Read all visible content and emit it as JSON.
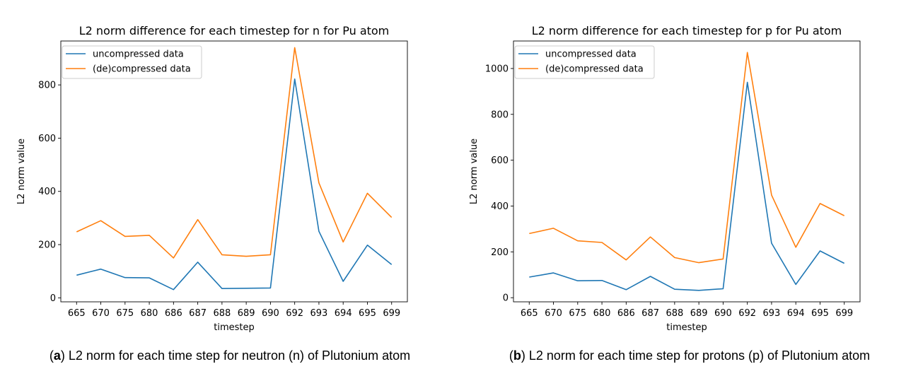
{
  "chart_data": [
    {
      "type": "line",
      "title": "L2 norm difference for each timestep for n for Pu atom",
      "xlabel": "timestep",
      "ylabel": "L2 norm value",
      "categories": [
        "665",
        "670",
        "675",
        "680",
        "686",
        "687",
        "688",
        "689",
        "690",
        "692",
        "693",
        "694",
        "695",
        "699"
      ],
      "ylim": [
        -15,
        965
      ],
      "yticks": [
        0,
        200,
        400,
        600,
        800
      ],
      "legend_position": "top-left",
      "grid": false,
      "series": [
        {
          "name": "uncompressed data",
          "color": "#1f77b4",
          "values": [
            85,
            108,
            76,
            75,
            31,
            134,
            35,
            36,
            37,
            822,
            250,
            62,
            198,
            125
          ]
        },
        {
          "name": "(de)compressed data",
          "color": "#ff7f0e",
          "values": [
            248,
            290,
            231,
            235,
            150,
            294,
            162,
            156,
            162,
            940,
            432,
            210,
            393,
            302
          ]
        }
      ],
      "caption": {
        "prefix": "(",
        "letter": "a",
        "suffix": ") L2 norm for each time step for neutron (n) of Plutonium atom"
      }
    },
    {
      "type": "line",
      "title": "L2 norm difference for each timestep for p for Pu atom",
      "xlabel": "timestep",
      "ylabel": "L2 norm value",
      "categories": [
        "665",
        "670",
        "675",
        "680",
        "686",
        "687",
        "688",
        "689",
        "690",
        "692",
        "693",
        "694",
        "695",
        "699"
      ],
      "ylim": [
        -18,
        1120
      ],
      "yticks": [
        0,
        200,
        400,
        600,
        800,
        1000
      ],
      "legend_position": "top-left",
      "grid": false,
      "series": [
        {
          "name": "uncompressed data",
          "color": "#1f77b4",
          "values": [
            90,
            108,
            74,
            75,
            35,
            93,
            37,
            32,
            39,
            940,
            238,
            58,
            204,
            150
          ]
        },
        {
          "name": "(de)compressed data",
          "color": "#ff7f0e",
          "values": [
            280,
            303,
            248,
            241,
            165,
            265,
            175,
            153,
            169,
            1070,
            448,
            220,
            411,
            358
          ]
        }
      ],
      "caption": {
        "prefix": "(",
        "letter": "b",
        "suffix": ") L2 norm for each time step for protons (p) of Plutonium atom"
      }
    }
  ]
}
